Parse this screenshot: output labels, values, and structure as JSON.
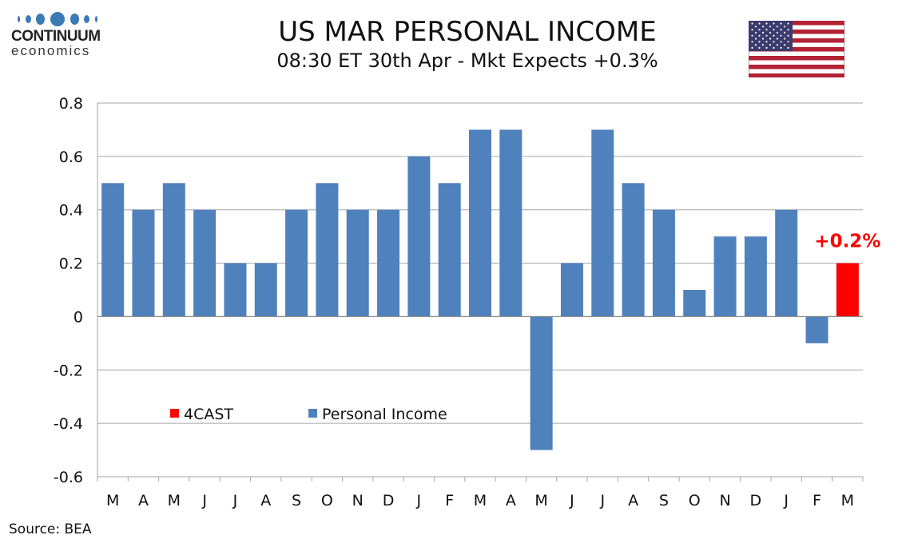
{
  "header": {
    "title": "US MAR PERSONAL INCOME",
    "subtitle": "08:30 ET 30th Apr - Mkt Expects +0.3%"
  },
  "logo": {
    "brand": "CONTINUUM",
    "sub": "economics"
  },
  "source": "Source: BEA",
  "colors": {
    "series": "#4f81bd",
    "forecast": "#ff0000",
    "grid": "#a6a6a6"
  },
  "chart_data": {
    "type": "bar",
    "title": "US MAR PERSONAL INCOME",
    "xlabel": "",
    "ylabel": "",
    "ylim": [
      -0.6,
      0.8
    ],
    "yticks": [
      0.8,
      0.6,
      0.4,
      0.2,
      0,
      -0.2,
      -0.4,
      -0.6
    ],
    "ytick_labels": [
      "0.8",
      "0.6",
      "0.4",
      "0.2",
      "0",
      "-0.2",
      "-0.4",
      "-0.6"
    ],
    "grid": true,
    "categories": [
      "M",
      "A",
      "M",
      "J",
      "J",
      "A",
      "S",
      "O",
      "N",
      "D",
      "J",
      "F",
      "M",
      "A",
      "M",
      "J",
      "J",
      "A",
      "S",
      "O",
      "N",
      "D",
      "J",
      "F",
      "M"
    ],
    "series": [
      {
        "name": "Personal Income",
        "color": "#4f81bd",
        "values": [
          0.5,
          0.4,
          0.5,
          0.4,
          0.2,
          0.2,
          0.4,
          0.5,
          0.4,
          0.4,
          0.6,
          0.5,
          0.7,
          0.7,
          -0.5,
          0.2,
          0.7,
          0.5,
          0.4,
          0.1,
          0.3,
          0.3,
          0.4,
          -0.1,
          null
        ]
      },
      {
        "name": "4CAST",
        "color": "#ff0000",
        "values": [
          null,
          null,
          null,
          null,
          null,
          null,
          null,
          null,
          null,
          null,
          null,
          null,
          null,
          null,
          null,
          null,
          null,
          null,
          null,
          null,
          null,
          null,
          null,
          null,
          0.2
        ]
      }
    ],
    "legend": [
      "4CAST",
      "Personal Income"
    ],
    "legend_placement": "lower-left",
    "annotations": [
      {
        "text": "+0.2%",
        "category_index": 24,
        "value": 0.2
      }
    ]
  }
}
